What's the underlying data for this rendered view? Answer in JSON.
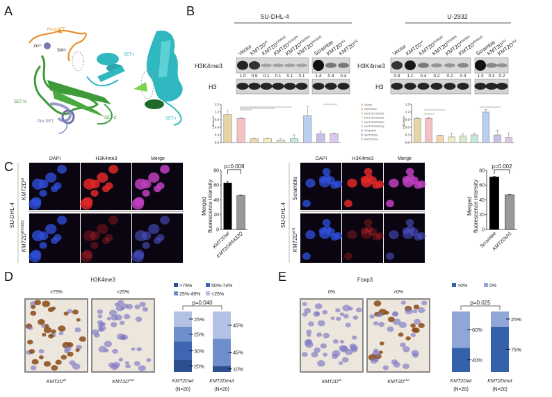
{
  "panels": {
    "a": "A",
    "b": "B",
    "c": "C",
    "d": "D",
    "e": "E"
  },
  "panel_a": {
    "labels": {
      "post_set": "Post-SET",
      "zn": "Zn²⁺",
      "sah": "SAH",
      "set_i": "SET-I",
      "set_n": "SET-N",
      "set_c": "SET-C",
      "pre_set": "Pre-SET",
      "set_i_2": "SET-I"
    },
    "colors": {
      "post_set": "#e8902a",
      "set_i": "#2fb8c0",
      "set_n": "#3f9a3a",
      "pre_set": "#8c8ec8"
    }
  },
  "panel_b": {
    "su": {
      "title": "SU-DHL-4",
      "lanes": [
        "Vector",
        "KMT2D",
        "KMT2D",
        "KMT2D",
        "KMT2D",
        "KMT2D",
        "Scramble",
        "KMT2D",
        "KMT2D"
      ],
      "lane_sup": [
        "",
        "wt",
        "C5092R",
        "G5182fs",
        "W5395X",
        "R5432Q",
        "",
        "sh1",
        "sh2"
      ],
      "row1": "H3K4me3",
      "row2": "H3",
      "quant": [
        "1.0",
        "0.9",
        "0.1",
        "0.1",
        "0.1",
        "0.1",
        "1.4",
        "0.4",
        "0.4"
      ]
    },
    "u": {
      "title": "U-2932",
      "lanes": [
        "Vector",
        "KMT2D",
        "KMT2D",
        "KMT2D",
        "KMT2D",
        "KMT2D",
        "Scramble",
        "KMT2D",
        "KMT2D"
      ],
      "lane_sup": [
        "",
        "wt",
        "C5092R",
        "G5182fs",
        "W5395X",
        "R5432Q",
        "",
        "sh1",
        "sh2"
      ],
      "row1": "H3K4me3",
      "row2": "H3",
      "quant": [
        "0.9",
        "1.1",
        "0.4",
        "0.2",
        "0.2",
        "0.3",
        "1.3",
        "0.3",
        "0.2"
      ]
    },
    "legend": [
      "Vector",
      "KMT2Dwt",
      "KMT2DC5092R",
      "KMT2DG5182fs",
      "KMT2DW5395X",
      "KMT2DR5432Q",
      "Scramble",
      "KMT2Dsh1",
      "KMT2Dsh2"
    ]
  },
  "panel_c": {
    "left": {
      "col_headers": [
        "DAPI",
        "H3K4me3",
        "Merge"
      ],
      "cell_line": "SU-DHL-4",
      "row_labels": [
        "KMT2D",
        "KMT2D"
      ],
      "row_sup": [
        "wt",
        "R5432Q"
      ]
    },
    "right": {
      "col_headers": [
        "DAPI",
        "H3K4me3",
        "Merge"
      ],
      "cell_line": "SU-DHL-4",
      "row_labels": [
        "Scramble",
        "KMT2D"
      ],
      "row_sup": [
        "",
        "sh1"
      ]
    }
  },
  "panel_d": {
    "title": "H3K4me3",
    "image_labels": [
      ">75%",
      "<25%"
    ],
    "image_captions": [
      "KMT2D",
      "KMT2D"
    ],
    "image_caption_sup": [
      "wt",
      "mut"
    ]
  },
  "panel_e": {
    "title": "Foxp3",
    "image_labels": [
      "0%",
      ">0%"
    ],
    "image_captions": [
      "KMT2D",
      "KMT2D"
    ],
    "image_caption_sup": [
      "wt",
      "mut"
    ]
  },
  "chart_data": [
    {
      "id": "b_su",
      "type": "bar",
      "categories": [
        "Vector",
        "KMT2Dwt",
        "KMT2DC5092R",
        "KMT2DG5182fs",
        "KMT2DW5395X",
        "KMT2DR5432Q",
        "Scramble",
        "KMT2Dsh1",
        "KMT2Dsh2"
      ],
      "values": [
        1.1,
        0.95,
        0.15,
        0.15,
        0.1,
        0.15,
        1.05,
        0.35,
        0.35
      ],
      "errors": [
        0.15,
        0.02,
        0.02,
        0.02,
        0.06,
        0.15,
        0.35,
        0.1,
        0.02
      ],
      "ylim": [
        0,
        1.5
      ],
      "yticks": [
        "0.0",
        "0.3",
        "0.6",
        "0.9",
        "1.2",
        "1.5"
      ],
      "ylabel": "H3K4me3",
      "colors": [
        "#e6d6a6",
        "#f3c2c0",
        "#f6d3b0",
        "#f1ecc0",
        "#d6e9c8",
        "#c6e8d6",
        "#b8cff0",
        "#c6bfe6",
        "#dec6ea"
      ]
    },
    {
      "id": "b_u",
      "type": "bar",
      "categories": [
        "Vector",
        "KMT2Dwt",
        "KMT2DC5092R",
        "KMT2DG5182fs",
        "KMT2DW5395X",
        "KMT2DR5432Q",
        "Scramble",
        "KMT2Dsh1",
        "KMT2Dsh2"
      ],
      "values": [
        0.95,
        0.95,
        0.28,
        0.22,
        0.25,
        0.3,
        1.2,
        0.3,
        0.2
      ],
      "errors": [
        0.04,
        0.05,
        0.01,
        0.15,
        0.1,
        0.06,
        0.1,
        0.18,
        0.18
      ],
      "ylim": [
        0,
        1.5
      ],
      "yticks": [
        "0.0",
        "0.3",
        "0.6",
        "0.9",
        "1.2",
        "1.5"
      ],
      "ylabel": "H3K4me3",
      "colors": [
        "#e6d6a6",
        "#f3c2c0",
        "#f6d3b0",
        "#f1ecc0",
        "#d6e9c8",
        "#c6e8d6",
        "#b8cff0",
        "#c6bfe6",
        "#dec6ea"
      ]
    },
    {
      "id": "c_left",
      "type": "bar",
      "categories": [
        "KMT2Dwt",
        "KMT2DR5432Q"
      ],
      "values": [
        63,
        46
      ],
      "errors": [
        2.5,
        0.8
      ],
      "ylim": [
        0,
        80
      ],
      "yticks": [
        "0",
        "20",
        "40",
        "60",
        "80"
      ],
      "ylabel": [
        "Merged",
        "fluorescence intensity"
      ],
      "pvalue": "p=0.008",
      "colors": [
        "#000000",
        "#999999"
      ]
    },
    {
      "id": "c_right",
      "type": "bar",
      "categories": [
        "Scramble",
        "KMT2Dsh1"
      ],
      "values": [
        71,
        47
      ],
      "errors": [
        1.2,
        0.5
      ],
      "ylim": [
        0,
        80
      ],
      "yticks": [
        "0",
        "20",
        "40",
        "60",
        "80"
      ],
      "ylabel": [
        "Merged",
        "fluorescence intensity"
      ],
      "pvalue": "p=0.002",
      "colors": [
        "#000000",
        "#999999"
      ]
    },
    {
      "id": "d",
      "type": "bar",
      "stacked": true,
      "categories": [
        "KMT2Dwt",
        "KMT2Dmut"
      ],
      "n": [
        "(N=20)",
        "(N=20)"
      ],
      "legend": [
        ">75%",
        "50%-74%",
        "25%-49%",
        "<25%"
      ],
      "series": [
        {
          "name": ">75%",
          "values": [
            20,
            10
          ]
        },
        {
          "name": "50%-74%",
          "values": [
            30,
            0
          ]
        },
        {
          "name": "25%-49%",
          "values": [
            25,
            45
          ]
        },
        {
          "name": "<25%",
          "values": [
            25,
            45
          ]
        }
      ],
      "colors": [
        "#2b4f90",
        "#3f66b2",
        "#6e8ecc",
        "#b3c2e4"
      ],
      "pvalue": "p=0.040"
    },
    {
      "id": "e",
      "type": "bar",
      "stacked": true,
      "categories": [
        "KMT2Dwt",
        "KMT2Dmut"
      ],
      "n": [
        "(N=20)",
        "(N=20)"
      ],
      "legend": [
        ">0%",
        "0%"
      ],
      "series": [
        {
          "name": ">0%",
          "values": [
            40,
            75
          ]
        },
        {
          "name": "0%",
          "values": [
            60,
            25
          ]
        }
      ],
      "colors": [
        "#3560aa",
        "#8fa6d6"
      ],
      "pvalue": "p=0.025"
    }
  ]
}
